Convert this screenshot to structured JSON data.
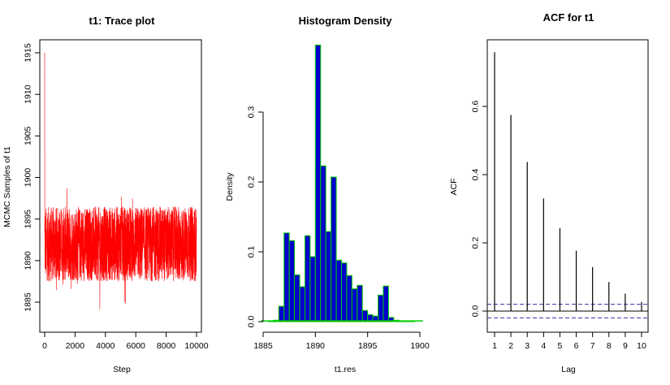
{
  "chart_data": [
    {
      "type": "line",
      "title": "t1: Trace plot",
      "xlabel": "Step",
      "ylabel": "MCMC Samples of t1",
      "xlim": [
        0,
        10000
      ],
      "ylim": [
        1882,
        1916
      ],
      "x_ticks": [
        0,
        2000,
        4000,
        6000,
        8000,
        10000
      ],
      "y_ticks": [
        1885,
        1890,
        1895,
        1900,
        1905,
        1910,
        1915
      ],
      "series": [
        {
          "color": "#ff0000",
          "n_samples": 10000,
          "start_value": 1915,
          "typical_range": [
            1887,
            1897
          ],
          "min_value": 1882.5,
          "max_value": 1899.8
        }
      ]
    },
    {
      "type": "bar",
      "title": "Histogram Density",
      "xlabel": "t1.res",
      "ylabel": "Density",
      "xlim": [
        1884.5,
        1900.5
      ],
      "ylim": [
        0,
        0.38
      ],
      "x_ticks": [
        1885,
        1890,
        1895,
        1900
      ],
      "y_ticks": [
        0.0,
        0.1,
        0.2,
        0.3
      ],
      "bar_fill": "#0000cc",
      "bar_border": "#00cc00",
      "bin_width": 0.5,
      "bins": [
        {
          "x0": 1885.5,
          "density": 0.001
        },
        {
          "x0": 1886.0,
          "density": 0.002
        },
        {
          "x0": 1886.5,
          "density": 0.022
        },
        {
          "x0": 1887.0,
          "density": 0.127
        },
        {
          "x0": 1887.5,
          "density": 0.116
        },
        {
          "x0": 1888.0,
          "density": 0.067
        },
        {
          "x0": 1888.5,
          "density": 0.05
        },
        {
          "x0": 1889.0,
          "density": 0.123
        },
        {
          "x0": 1889.5,
          "density": 0.093
        },
        {
          "x0": 1890.0,
          "density": 0.396
        },
        {
          "x0": 1890.5,
          "density": 0.223
        },
        {
          "x0": 1891.0,
          "density": 0.129
        },
        {
          "x0": 1891.5,
          "density": 0.207
        },
        {
          "x0": 1892.0,
          "density": 0.088
        },
        {
          "x0": 1892.5,
          "density": 0.084
        },
        {
          "x0": 1893.0,
          "density": 0.066
        },
        {
          "x0": 1893.5,
          "density": 0.047
        },
        {
          "x0": 1894.0,
          "density": 0.052
        },
        {
          "x0": 1894.5,
          "density": 0.016
        },
        {
          "x0": 1895.0,
          "density": 0.01
        },
        {
          "x0": 1895.5,
          "density": 0.008
        },
        {
          "x0": 1896.0,
          "density": 0.038
        },
        {
          "x0": 1896.5,
          "density": 0.051
        },
        {
          "x0": 1897.0,
          "density": 0.006
        },
        {
          "x0": 1897.5,
          "density": 0.002
        },
        {
          "x0": 1898.0,
          "density": 0.001
        },
        {
          "x0": 1898.5,
          "density": 0.001
        },
        {
          "x0": 1899.0,
          "density": 0.001
        }
      ],
      "density_line_color": "#00cc00"
    },
    {
      "type": "bar",
      "title": "ACF for t1",
      "xlabel": "Lag",
      "ylabel": "ACF",
      "xlim": [
        0.6,
        10.4
      ],
      "ylim": [
        -0.055,
        0.79
      ],
      "x_ticks": [
        1,
        2,
        3,
        4,
        5,
        6,
        7,
        8,
        9,
        10
      ],
      "y_ticks": [
        0.0,
        0.2,
        0.4,
        0.6
      ],
      "categories": [
        1,
        2,
        3,
        4,
        5,
        6,
        7,
        8,
        9,
        10
      ],
      "values": [
        0.759,
        0.575,
        0.437,
        0.33,
        0.243,
        0.177,
        0.129,
        0.085,
        0.051,
        0.027
      ],
      "confidence_bounds": [
        -0.02,
        0.02
      ],
      "bound_color": "#3333aa"
    }
  ]
}
